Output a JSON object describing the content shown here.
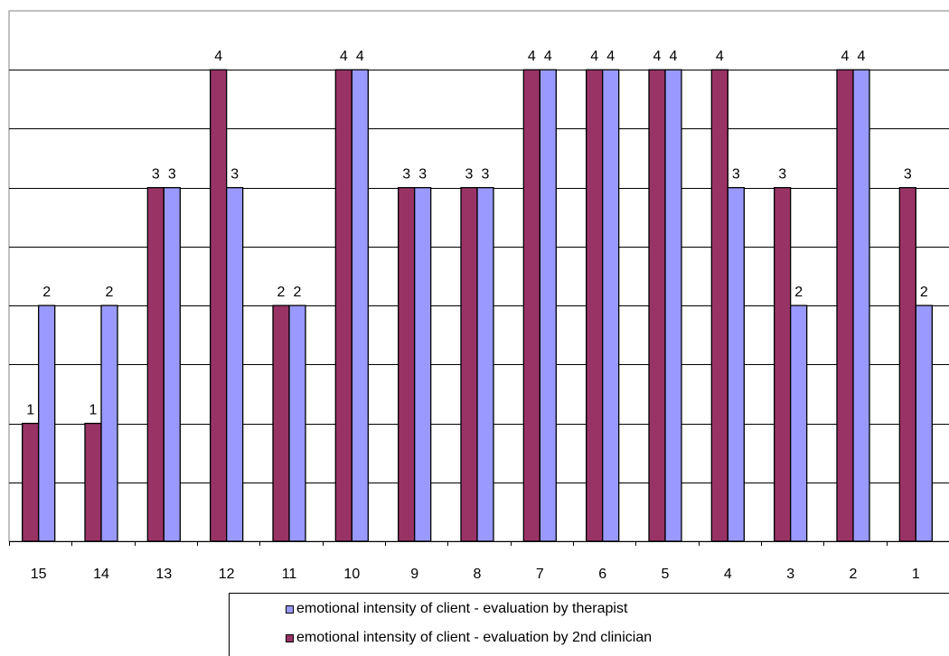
{
  "chart_data": {
    "type": "bar",
    "title": "",
    "xlabel": "",
    "ylabel": "",
    "ylim": [
      0,
      4.5
    ],
    "grid": true,
    "categories": [
      "15",
      "14",
      "13",
      "12",
      "11",
      "10",
      "9",
      "8",
      "7",
      "6",
      "5",
      "4",
      "3",
      "2",
      "1"
    ],
    "series": [
      {
        "name": "emotional intensity of client - evaluation by 2nd clinician",
        "color": "#993366",
        "values": [
          1,
          1,
          3,
          4,
          2,
          4,
          3,
          3,
          4,
          4,
          4,
          4,
          3,
          4,
          3
        ]
      },
      {
        "name": "emotional intensity of client  - evaluation by therapist",
        "color": "#9999ff",
        "values": [
          2,
          2,
          3,
          3,
          2,
          4,
          3,
          3,
          4,
          4,
          4,
          3,
          2,
          4,
          2
        ]
      }
    ],
    "legend": {
      "position": "bottom",
      "order": [
        1,
        0
      ]
    }
  }
}
